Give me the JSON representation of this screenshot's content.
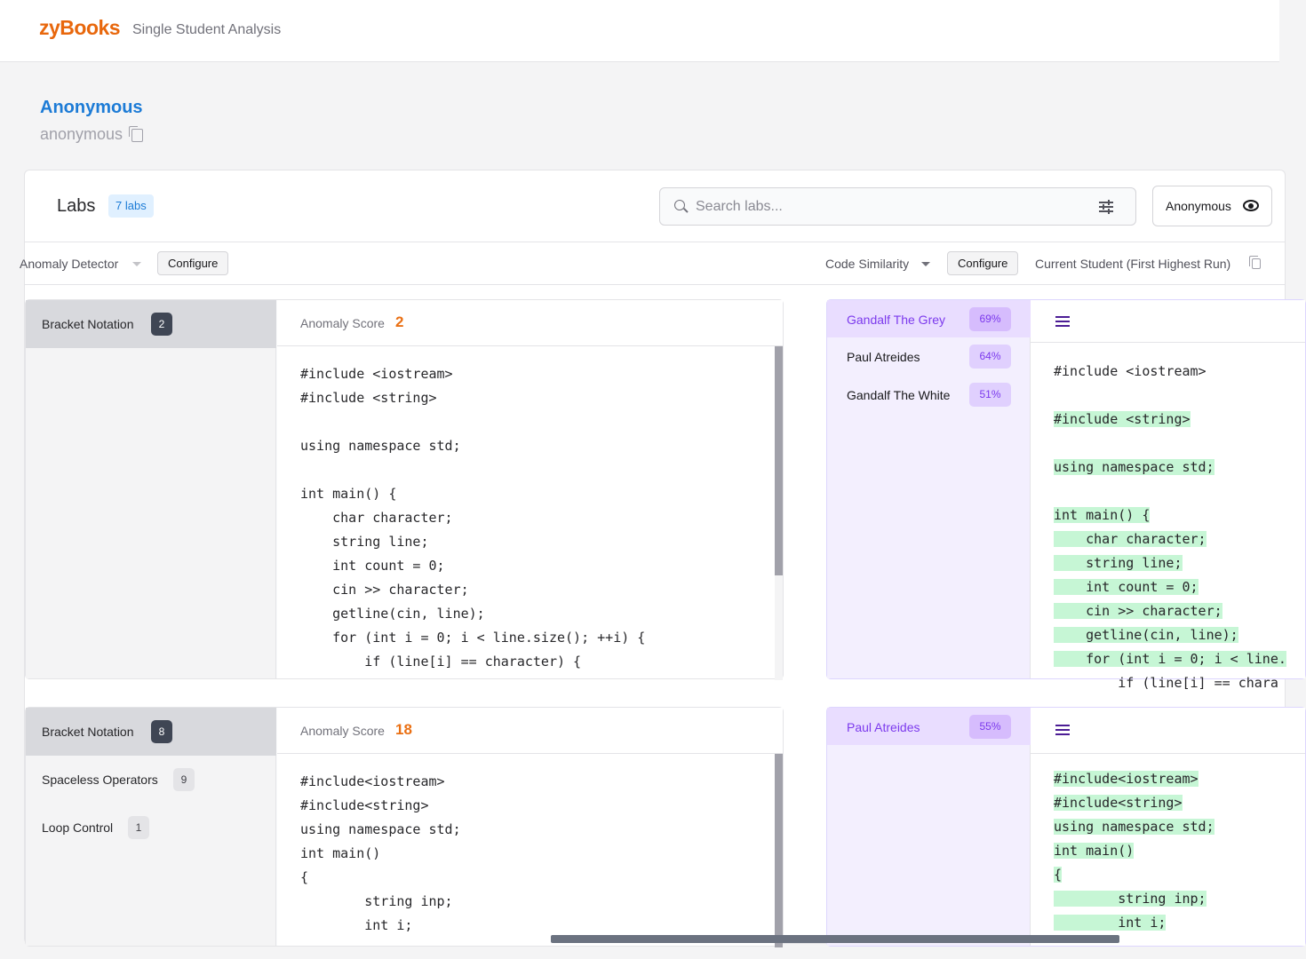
{
  "header": {
    "logo": "zyBooks",
    "app_title": "Single Student Analysis"
  },
  "student": {
    "name": "Anonymous",
    "username": "anonymous"
  },
  "labs": {
    "title": "Labs",
    "count_badge": "7 labs",
    "search_placeholder": "Search labs...",
    "anon_button_label": "Anonymous"
  },
  "toolbar": {
    "anomaly_detector": "Anomaly Detector",
    "configure_left": "Configure",
    "code_similarity": "Code Similarity",
    "configure_right": "Configure",
    "current_student": "Current Student (First Highest Run)"
  },
  "lab1": {
    "categories": [
      {
        "label": "Bracket Notation",
        "count": "2"
      }
    ],
    "score_label": "Anomaly Score",
    "score": "2",
    "code_lines": [
      "#include <iostream>",
      "#include <string>",
      "",
      "using namespace std;",
      "",
      "int main() {",
      "    char character;",
      "    string line;",
      "    int count = 0;",
      "    cin >> character;",
      "    getline(cin, line);",
      "    for (int i = 0; i < line.size(); ++i) {",
      "        if (line[i] == character) {"
    ],
    "matches": [
      {
        "name": "Gandalf The Grey",
        "pct": "69%"
      },
      {
        "name": "Paul Atreides",
        "pct": "64%"
      },
      {
        "name": "Gandalf The White",
        "pct": "51%"
      }
    ],
    "match_code_lines": [
      "#include <iostream>",
      "",
      "#include <string>",
      "",
      "using namespace std;",
      "",
      "int main() {",
      "    char character;",
      "    string line;",
      "    int count = 0;",
      "    cin >> character;",
      "    getline(cin, line);",
      "    for (int i = 0; i < line.",
      "        if (line[i] == chara"
    ]
  },
  "lab2": {
    "categories": [
      {
        "label": "Bracket Notation",
        "count": "8"
      },
      {
        "label": "Spaceless Operators",
        "count": "9"
      },
      {
        "label": "Loop Control",
        "count": "1"
      }
    ],
    "score_label": "Anomaly Score",
    "score": "18",
    "code_lines": [
      "#include<iostream>",
      "#include<string>",
      "using namespace std;",
      "int main()",
      "{",
      "        string inp;",
      "        int i;"
    ],
    "matches": [
      {
        "name": "Paul Atreides",
        "pct": "55%"
      }
    ],
    "match_code_lines": [
      "#include<iostream>",
      "#include<string>",
      "using namespace std;",
      "int main()",
      "{",
      "        string inp;",
      "        int i;"
    ]
  }
}
